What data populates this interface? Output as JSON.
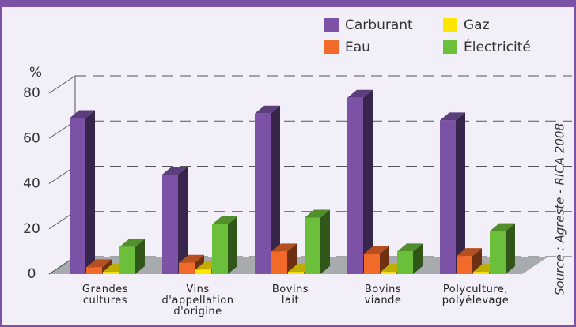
{
  "chart_data": {
    "type": "bar3d",
    "y_label": "%",
    "source": "Source : Agreste - RICA 2008",
    "categories": [
      "Grandes\ncultures",
      "Vins\nd'appellation\nd'origine",
      "Bovins\nlait",
      "Bovins\nviande",
      "Polyculture,\npolyélevage"
    ],
    "series": [
      {
        "name": "Carburant",
        "color": "#7b52a6",
        "values": [
          69,
          44,
          71,
          78,
          68
        ]
      },
      {
        "name": "Eau",
        "color": "#f26a2a",
        "values": [
          3,
          5,
          10,
          9,
          8
        ]
      },
      {
        "name": "Gaz",
        "color": "#ffe600",
        "values": [
          1,
          2,
          1,
          1,
          1
        ]
      },
      {
        "name": "Électricité",
        "color": "#6cbf3a",
        "values": [
          12,
          22,
          25,
          10,
          19
        ]
      }
    ],
    "ylim": [
      0,
      80
    ],
    "yticks": [
      0,
      20,
      40,
      60,
      80
    ],
    "grid": true
  }
}
